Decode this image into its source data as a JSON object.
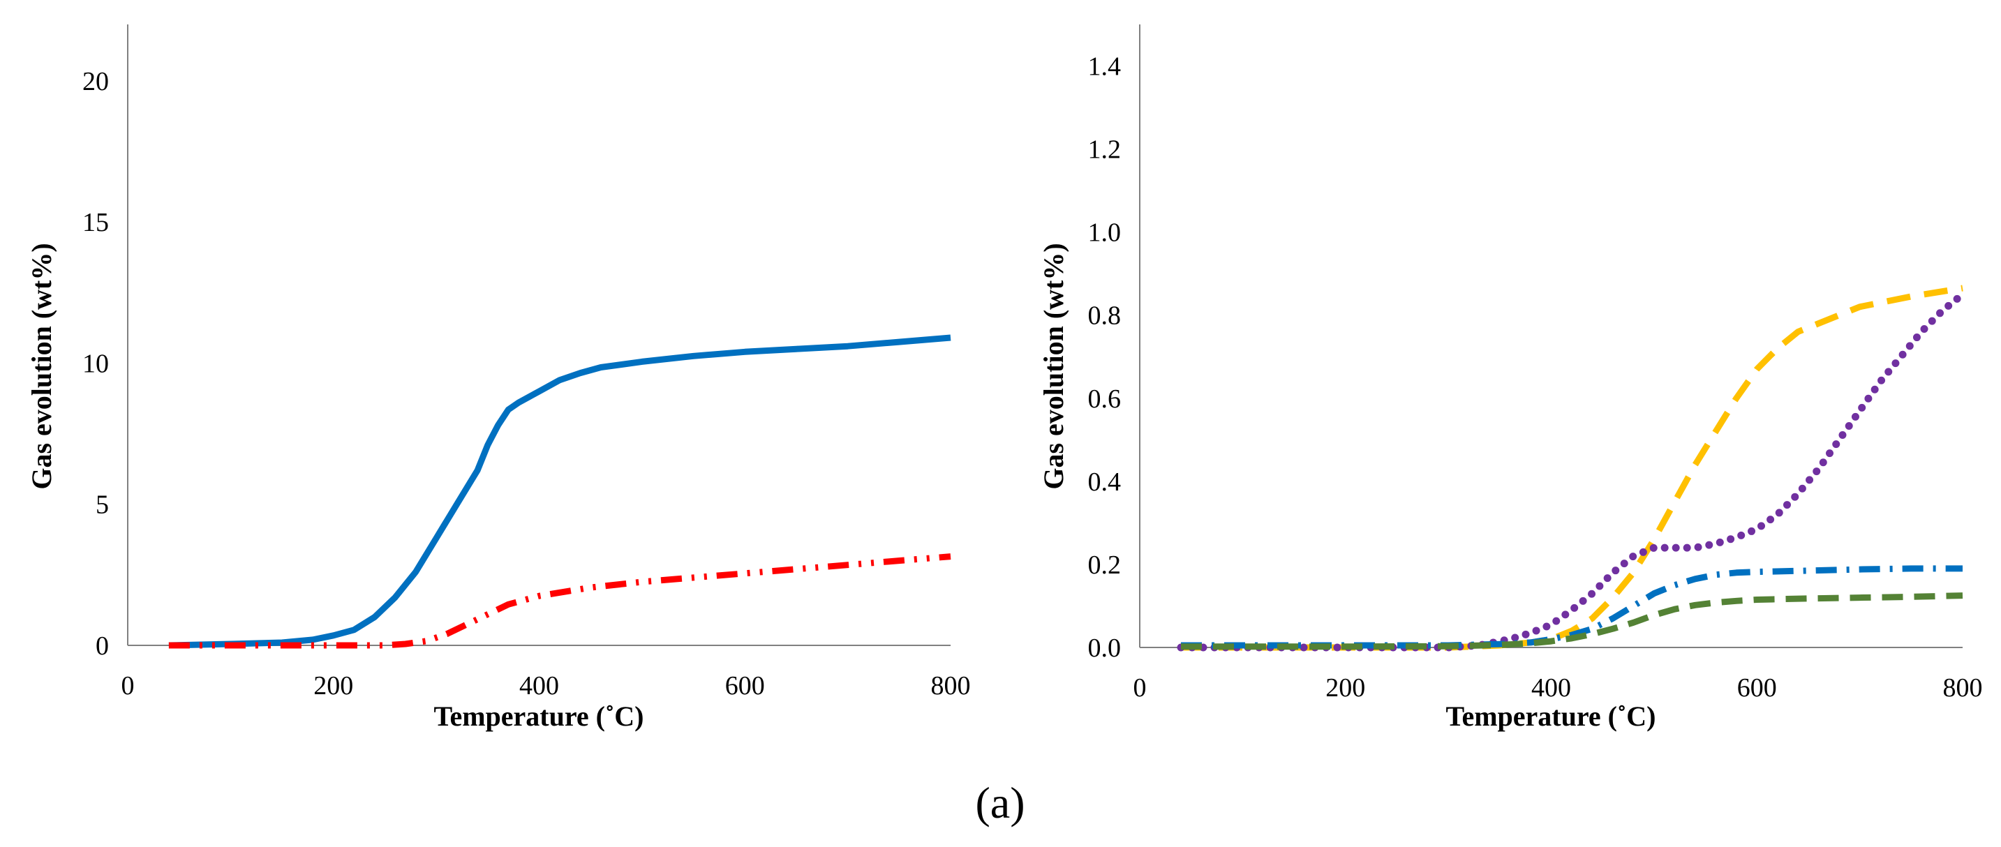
{
  "chart_data": [
    {
      "type": "line",
      "title": "",
      "xlabel": "Temperature (˚C)",
      "ylabel": "Gas evolution (wt%)",
      "xlim": [
        0,
        800
      ],
      "ylim": [
        0,
        22
      ],
      "x_ticks": [
        "0",
        "200",
        "400",
        "600",
        "800"
      ],
      "y_ticks": [
        "0",
        "5",
        "10",
        "15",
        "20"
      ],
      "grid": false,
      "legend": "none",
      "series": [
        {
          "name": "solid blue",
          "color": "#0070C0",
          "style": "solid",
          "x": [
            40,
            100,
            150,
            180,
            200,
            220,
            240,
            260,
            280,
            300,
            320,
            340,
            350,
            360,
            370,
            380,
            400,
            420,
            440,
            460,
            480,
            500,
            550,
            600,
            650,
            700,
            750,
            800
          ],
          "y": [
            0.0,
            0.05,
            0.1,
            0.2,
            0.35,
            0.55,
            1.0,
            1.7,
            2.6,
            3.8,
            5.0,
            6.2,
            7.1,
            7.8,
            8.35,
            8.6,
            9.0,
            9.4,
            9.65,
            9.85,
            9.95,
            10.05,
            10.25,
            10.4,
            10.5,
            10.6,
            10.75,
            10.9
          ]
        },
        {
          "name": "red dash-dot",
          "color": "#FF0000",
          "style": "dash-dot-dot",
          "x": [
            40,
            100,
            200,
            250,
            270,
            290,
            310,
            330,
            350,
            370,
            400,
            450,
            500,
            550,
            600,
            650,
            700,
            750,
            800
          ],
          "y": [
            0.0,
            0.0,
            0.0,
            0.0,
            0.05,
            0.15,
            0.4,
            0.75,
            1.1,
            1.45,
            1.75,
            2.05,
            2.25,
            2.4,
            2.55,
            2.7,
            2.85,
            3.0,
            3.15
          ]
        }
      ]
    },
    {
      "type": "line",
      "title": "",
      "xlabel": "Temperature (˚C)",
      "ylabel": "Gas evolution (wt%)",
      "xlim": [
        0,
        800
      ],
      "ylim": [
        0,
        1.5
      ],
      "x_ticks": [
        "0",
        "200",
        "400",
        "600",
        "800"
      ],
      "y_ticks": [
        "0.0",
        "0.2",
        "0.4",
        "0.6",
        "0.8",
        "1.0",
        "1.2",
        "1.4"
      ],
      "grid": false,
      "legend": "none",
      "series": [
        {
          "name": "yellow dashed",
          "color": "#FFC000",
          "style": "dashed",
          "x": [
            40,
            200,
            300,
            350,
            380,
            400,
            420,
            440,
            460,
            480,
            500,
            520,
            540,
            560,
            580,
            600,
            620,
            640,
            660,
            680,
            700,
            750,
            800
          ],
          "y": [
            0.0,
            0.0,
            0.0,
            0.005,
            0.012,
            0.02,
            0.04,
            0.07,
            0.12,
            0.18,
            0.26,
            0.35,
            0.44,
            0.52,
            0.6,
            0.67,
            0.72,
            0.76,
            0.78,
            0.8,
            0.82,
            0.845,
            0.865
          ]
        },
        {
          "name": "purple dotted",
          "color": "#7030A0",
          "style": "dotted",
          "x": [
            40,
            200,
            300,
            330,
            360,
            380,
            400,
            420,
            440,
            460,
            480,
            500,
            520,
            540,
            560,
            580,
            600,
            620,
            640,
            660,
            680,
            700,
            720,
            740,
            760,
            780,
            800
          ],
          "y": [
            0.0,
            0.0,
            0.0,
            0.005,
            0.02,
            0.035,
            0.055,
            0.09,
            0.13,
            0.18,
            0.22,
            0.24,
            0.24,
            0.24,
            0.25,
            0.265,
            0.285,
            0.32,
            0.37,
            0.43,
            0.5,
            0.57,
            0.64,
            0.7,
            0.76,
            0.81,
            0.85
          ]
        },
        {
          "name": "blue dash-dot",
          "color": "#0070C0",
          "style": "dash-dot",
          "x": [
            40,
            100,
            200,
            300,
            350,
            380,
            400,
            420,
            440,
            460,
            480,
            500,
            520,
            540,
            560,
            580,
            600,
            650,
            700,
            750,
            800
          ],
          "y": [
            0.005,
            0.005,
            0.005,
            0.005,
            0.008,
            0.012,
            0.02,
            0.03,
            0.045,
            0.07,
            0.1,
            0.13,
            0.15,
            0.165,
            0.175,
            0.18,
            0.182,
            0.185,
            0.188,
            0.19,
            0.19
          ]
        },
        {
          "name": "green dashed",
          "color": "#548235",
          "style": "long-dash",
          "x": [
            40,
            100,
            200,
            300,
            350,
            380,
            400,
            420,
            440,
            460,
            480,
            500,
            520,
            540,
            560,
            580,
            600,
            650,
            700,
            750,
            800
          ],
          "y": [
            0.002,
            0.002,
            0.002,
            0.003,
            0.006,
            0.01,
            0.015,
            0.022,
            0.032,
            0.045,
            0.06,
            0.078,
            0.092,
            0.102,
            0.108,
            0.112,
            0.115,
            0.118,
            0.12,
            0.122,
            0.125
          ]
        }
      ]
    }
  ],
  "figure": {
    "caption": "(a)"
  }
}
